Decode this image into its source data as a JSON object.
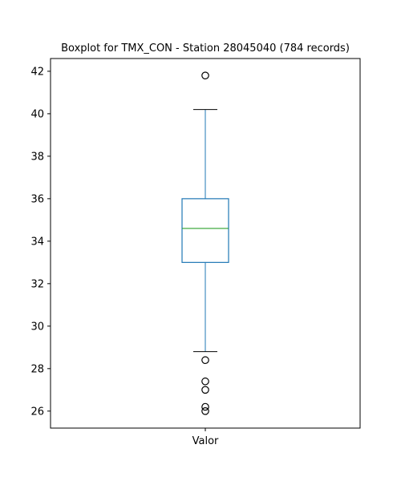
{
  "chart_data": {
    "type": "box",
    "title": "Boxplot for TMX_CON - Station 28045040 (784 records)",
    "xlabel": "",
    "ylabel": "",
    "categories": [
      "Valor"
    ],
    "ylim": [
      25.2,
      42.6
    ],
    "yticks": [
      26,
      28,
      30,
      32,
      34,
      36,
      38,
      40,
      42
    ],
    "grid": false,
    "legend": "none",
    "boxes": [
      {
        "category": "Valor",
        "whisker_low": 28.8,
        "q1": 33.0,
        "median": 34.6,
        "q3": 36.0,
        "whisker_high": 40.2,
        "outliers": [
          41.8,
          28.4,
          27.4,
          27.0,
          26.2,
          26.0
        ]
      }
    ],
    "colors": {
      "box": "#1f77b4",
      "median": "#2ca02c",
      "whisker": "#1f77b4",
      "cap": "#000000",
      "outlier": "#000000",
      "axes": "#000000"
    }
  }
}
